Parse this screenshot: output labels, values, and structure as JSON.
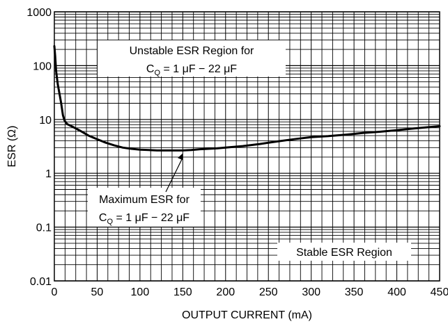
{
  "chart_data": {
    "type": "line",
    "xlabel": "OUTPUT CURRENT (mA)",
    "ylabel": "ESR (Ω)",
    "xlim": [
      0,
      450
    ],
    "ylim": [
      0.01,
      1000
    ],
    "yscale": "log",
    "grid": true,
    "x_ticks": [
      0,
      50,
      100,
      150,
      200,
      250,
      300,
      350,
      400,
      450
    ],
    "y_ticks": [
      0.01,
      0.1,
      1,
      10,
      100,
      1000
    ],
    "x_tick_labels": [
      "0",
      "50",
      "100",
      "150",
      "200",
      "250",
      "300",
      "350",
      "400",
      "450"
    ],
    "y_tick_labels": [
      "0.01",
      "0.1",
      "1",
      "10",
      "100",
      "1000"
    ],
    "series": [
      {
        "x": [
          0,
          1,
          2,
          4,
          6,
          8,
          10,
          12,
          15,
          20,
          30,
          40,
          50,
          60,
          70,
          80,
          90,
          100,
          110,
          120,
          130,
          140,
          150,
          160,
          170,
          180,
          190,
          200,
          220,
          240,
          260,
          280,
          300,
          320,
          340,
          360,
          380,
          400,
          420,
          450
        ],
        "y": [
          230,
          150,
          80,
          45,
          30,
          20,
          12,
          9.5,
          8.2,
          7.5,
          6.2,
          5,
          4.3,
          3.7,
          3.3,
          3.0,
          2.85,
          2.75,
          2.7,
          2.65,
          2.65,
          2.65,
          2.65,
          2.7,
          2.8,
          2.85,
          2.9,
          3.0,
          3.2,
          3.5,
          3.9,
          4.3,
          4.7,
          4.9,
          5.2,
          5.6,
          5.9,
          6.3,
          6.8,
          7.5
        ]
      }
    ],
    "annotations": [
      {
        "line1": "Unstable ESR Region for",
        "line2_prefix": "C",
        "line2_sub": "Q",
        "line2_rest": " = 1 μF − 22 μF"
      },
      {
        "line1": "Maximum ESR for",
        "line2_prefix": "C",
        "line2_sub": "Q",
        "line2_rest": " = 1 μF − 22 μF"
      },
      {
        "line1": "Stable ESR Region"
      }
    ]
  }
}
